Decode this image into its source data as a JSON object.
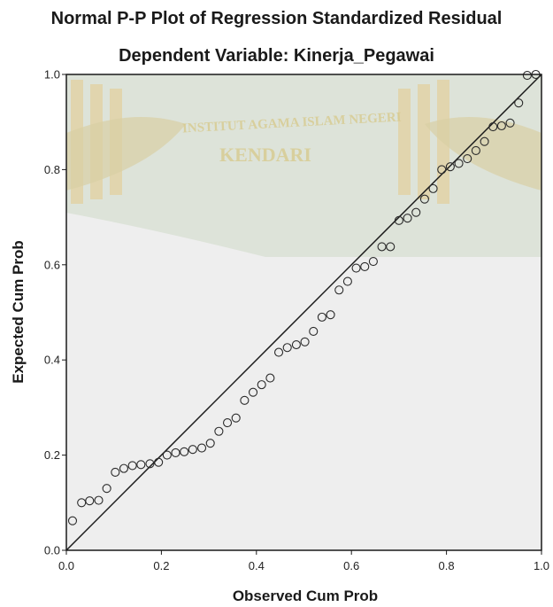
{
  "chart_data": {
    "type": "scatter",
    "title": "Normal P-P Plot of Regression Standardized Residual",
    "subtitle": "Dependent Variable: Kinerja_Pegawai",
    "xlabel": "Observed Cum Prob",
    "ylabel": "Expected Cum Prob",
    "xlim": [
      0.0,
      1.0
    ],
    "ylim": [
      0.0,
      1.0
    ],
    "xticks": [
      "0.0",
      "0.2",
      "0.4",
      "0.6",
      "0.8",
      "1.0"
    ],
    "yticks": [
      "0.0",
      "0.2",
      "0.4",
      "0.6",
      "0.8",
      "1.0"
    ],
    "reference_line": {
      "from": [
        0.0,
        0.0
      ],
      "to": [
        1.0,
        1.0
      ]
    },
    "grid": false,
    "points": [
      [
        0.013,
        0.062
      ],
      [
        0.032,
        0.1
      ],
      [
        0.049,
        0.104
      ],
      [
        0.068,
        0.105
      ],
      [
        0.085,
        0.13
      ],
      [
        0.103,
        0.164
      ],
      [
        0.121,
        0.172
      ],
      [
        0.139,
        0.178
      ],
      [
        0.157,
        0.18
      ],
      [
        0.176,
        0.182
      ],
      [
        0.194,
        0.185
      ],
      [
        0.212,
        0.2
      ],
      [
        0.23,
        0.205
      ],
      [
        0.248,
        0.207
      ],
      [
        0.266,
        0.212
      ],
      [
        0.285,
        0.215
      ],
      [
        0.303,
        0.225
      ],
      [
        0.321,
        0.25
      ],
      [
        0.339,
        0.268
      ],
      [
        0.357,
        0.278
      ],
      [
        0.375,
        0.315
      ],
      [
        0.393,
        0.332
      ],
      [
        0.411,
        0.348
      ],
      [
        0.429,
        0.362
      ],
      [
        0.447,
        0.416
      ],
      [
        0.465,
        0.426
      ],
      [
        0.484,
        0.432
      ],
      [
        0.502,
        0.438
      ],
      [
        0.52,
        0.46
      ],
      [
        0.538,
        0.49
      ],
      [
        0.556,
        0.495
      ],
      [
        0.574,
        0.547
      ],
      [
        0.592,
        0.565
      ],
      [
        0.61,
        0.593
      ],
      [
        0.628,
        0.596
      ],
      [
        0.646,
        0.607
      ],
      [
        0.664,
        0.638
      ],
      [
        0.682,
        0.638
      ],
      [
        0.7,
        0.693
      ],
      [
        0.718,
        0.698
      ],
      [
        0.736,
        0.71
      ],
      [
        0.754,
        0.738
      ],
      [
        0.772,
        0.76
      ],
      [
        0.79,
        0.8
      ],
      [
        0.808,
        0.806
      ],
      [
        0.826,
        0.813
      ],
      [
        0.844,
        0.823
      ],
      [
        0.862,
        0.84
      ],
      [
        0.88,
        0.859
      ],
      [
        0.898,
        0.89
      ],
      [
        0.916,
        0.892
      ],
      [
        0.934,
        0.898
      ],
      [
        0.952,
        0.94
      ],
      [
        0.97,
        0.998
      ],
      [
        0.988,
        1.0
      ]
    ]
  },
  "watermark": {
    "text_top": "INSTITUT AGAMA ISLAM NEGERI",
    "text_main": "KENDARI",
    "color": "#d7c98a"
  },
  "colors": {
    "plot_background": "#eeeeee",
    "frame": "#1a1a1a",
    "marker_stroke": "#2a2a2a"
  }
}
